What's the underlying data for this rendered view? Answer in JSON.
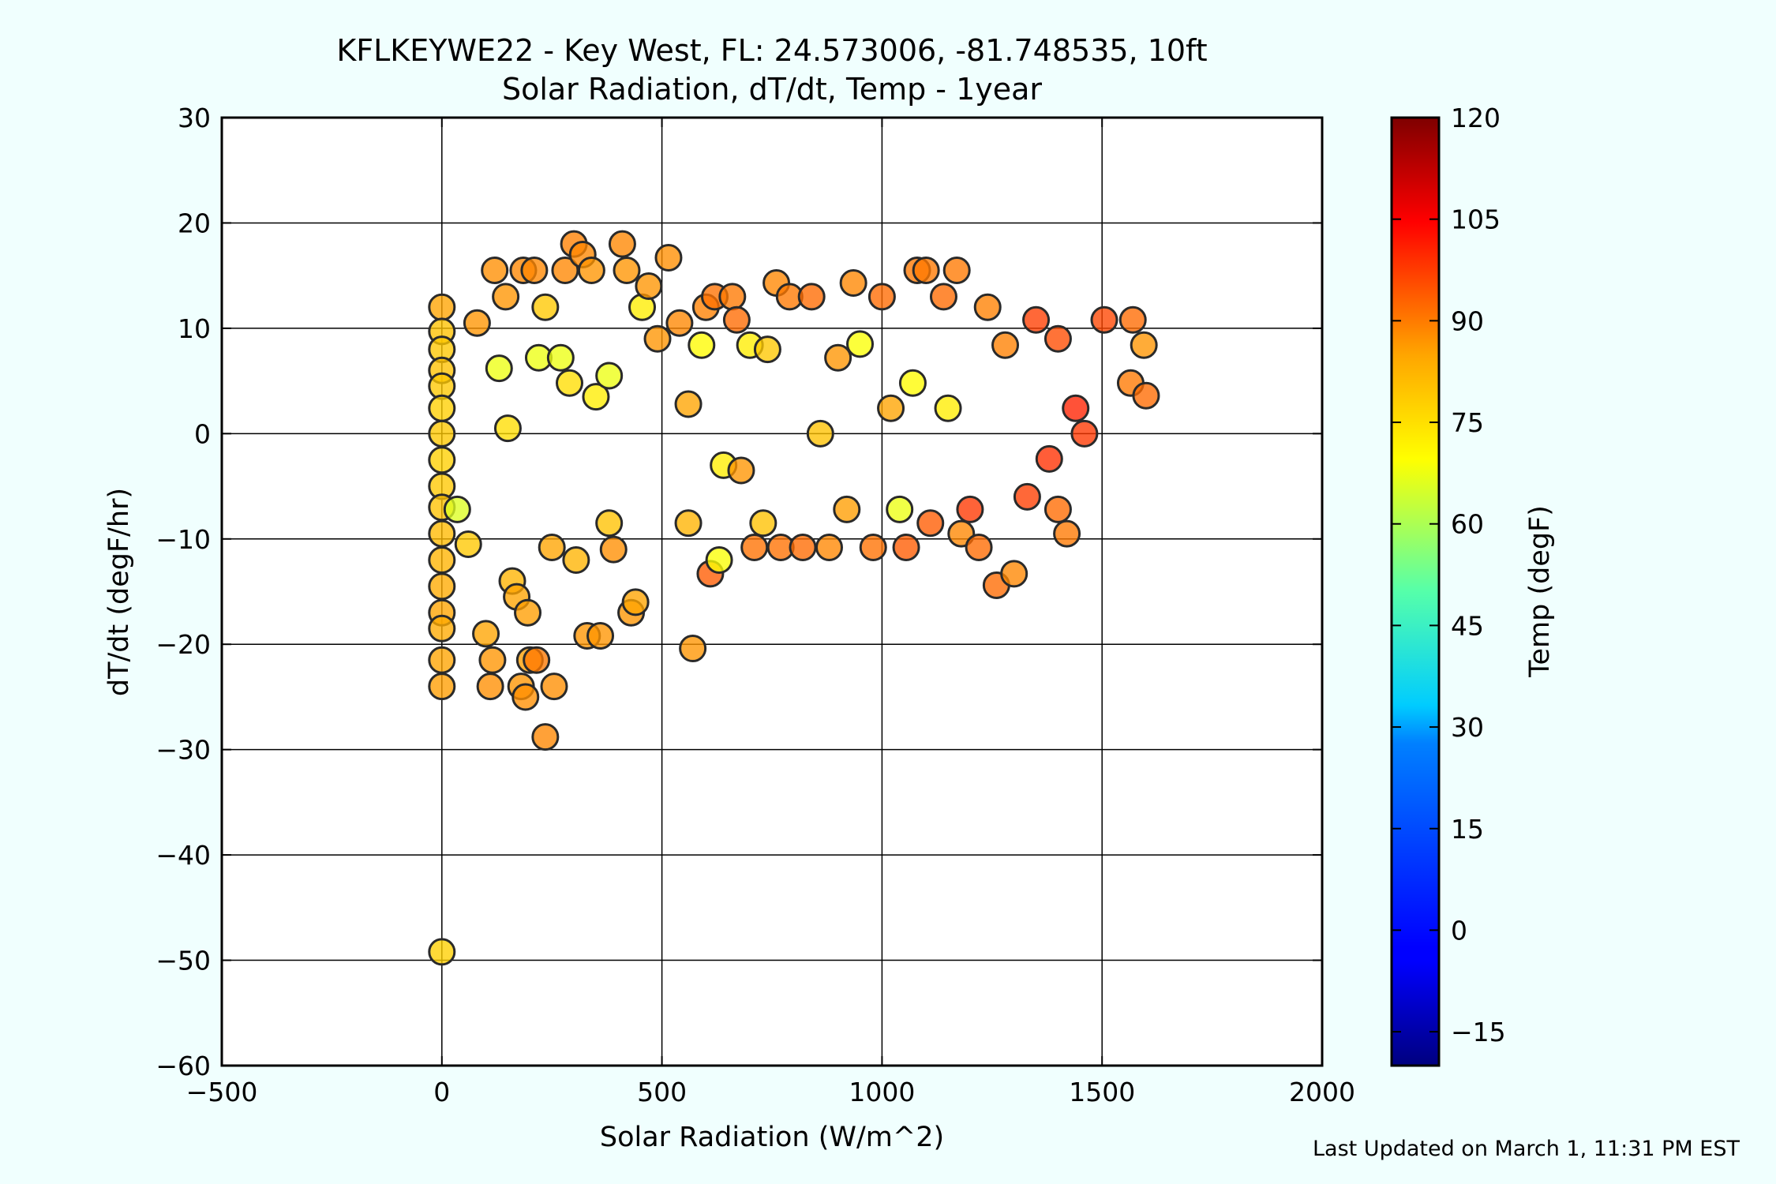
{
  "chart_data": {
    "type": "scatter",
    "title": "KFLKEYWE22 - Key West, FL: 24.573006, -81.748535, 10ft",
    "subtitle": "Solar Radiation, dT/dt, Temp - 1year",
    "xlabel": "Solar Radiation (W/m^2)",
    "ylabel": "dT/dt (degF/hr)",
    "colorbar_label": "Temp (degF)",
    "xlim": [
      -500,
      2000
    ],
    "ylim": [
      -60,
      30
    ],
    "xticks": [
      -500,
      0,
      500,
      1000,
      1500,
      2000
    ],
    "xtick_labels": [
      "−500",
      "0",
      "500",
      "1000",
      "1500",
      "2000"
    ],
    "yticks": [
      -60,
      -50,
      -40,
      -30,
      -20,
      -10,
      0,
      10,
      20,
      30
    ],
    "ytick_labels": [
      "−60",
      "−50",
      "−40",
      "−30",
      "−20",
      "−10",
      "0",
      "10",
      "20",
      "30"
    ],
    "colorbar_range": [
      -20,
      120
    ],
    "colorbar_ticks": [
      -15,
      0,
      15,
      30,
      45,
      60,
      75,
      90,
      105,
      120
    ],
    "colorbar_tick_labels": [
      "−15",
      "0",
      "15",
      "30",
      "45",
      "60",
      "75",
      "90",
      "105",
      "120"
    ],
    "colormap": "jet",
    "grid": true,
    "series": [
      {
        "fields": [
          "solar_radiation",
          "dT_dt",
          "temp"
        ],
        "points": [
          [
            0,
            -49.2,
            74
          ],
          [
            0,
            12,
            80
          ],
          [
            0,
            9.7,
            76
          ],
          [
            0,
            8,
            75
          ],
          [
            0,
            6,
            76
          ],
          [
            0,
            4.5,
            75
          ],
          [
            0,
            2.4,
            74
          ],
          [
            0,
            0,
            75
          ],
          [
            0,
            -2.5,
            74
          ],
          [
            0,
            -5,
            75
          ],
          [
            0,
            -7,
            76
          ],
          [
            0,
            -9.5,
            77
          ],
          [
            0,
            -12,
            78
          ],
          [
            0,
            -14.5,
            79
          ],
          [
            0,
            -17,
            80
          ],
          [
            0,
            -18.5,
            79
          ],
          [
            0,
            -21.5,
            80
          ],
          [
            0,
            -24,
            81
          ],
          [
            35,
            -7.2,
            63
          ],
          [
            60,
            -10.5,
            75
          ],
          [
            80,
            10.5,
            82
          ],
          [
            100,
            -19,
            80
          ],
          [
            110,
            -24,
            83
          ],
          [
            115,
            -21.5,
            82
          ],
          [
            120,
            15.5,
            83
          ],
          [
            130,
            6.2,
            65
          ],
          [
            145,
            13,
            82
          ],
          [
            150,
            0.5,
            72
          ],
          [
            160,
            -14,
            78
          ],
          [
            170,
            -15.5,
            80
          ],
          [
            180,
            -24,
            82
          ],
          [
            185,
            15.5,
            84
          ],
          [
            190,
            -25,
            83
          ],
          [
            195,
            -17,
            81
          ],
          [
            200,
            -21.5,
            81
          ],
          [
            210,
            15.5,
            84
          ],
          [
            215,
            -21.5,
            86
          ],
          [
            220,
            7.2,
            65
          ],
          [
            235,
            12,
            75
          ],
          [
            235,
            -28.8,
            84
          ],
          [
            250,
            -10.8,
            80
          ],
          [
            255,
            -24,
            83
          ],
          [
            270,
            7.2,
            65
          ],
          [
            280,
            15.5,
            84
          ],
          [
            290,
            4.8,
            72
          ],
          [
            300,
            18,
            85
          ],
          [
            305,
            -12,
            78
          ],
          [
            320,
            17,
            84
          ],
          [
            330,
            -19.2,
            82
          ],
          [
            340,
            15.5,
            82
          ],
          [
            350,
            3.5,
            70
          ],
          [
            360,
            -19.2,
            82
          ],
          [
            380,
            5.5,
            65
          ],
          [
            380,
            -8.5,
            76
          ],
          [
            390,
            -11,
            83
          ],
          [
            410,
            18,
            84
          ],
          [
            420,
            15.5,
            82
          ],
          [
            430,
            -17,
            82
          ],
          [
            440,
            -16,
            80
          ],
          [
            455,
            12,
            70
          ],
          [
            470,
            14,
            82
          ],
          [
            490,
            9,
            82
          ],
          [
            515,
            16.7,
            83
          ],
          [
            540,
            10.5,
            84
          ],
          [
            560,
            2.8,
            80
          ],
          [
            560,
            -8.5,
            78
          ],
          [
            570,
            -20.4,
            82
          ],
          [
            590,
            8.4,
            68
          ],
          [
            600,
            12,
            85
          ],
          [
            610,
            -13.3,
            90
          ],
          [
            620,
            13,
            87
          ],
          [
            630,
            -12,
            67
          ],
          [
            640,
            -3,
            70
          ],
          [
            660,
            13,
            86
          ],
          [
            670,
            10.8,
            88
          ],
          [
            680,
            -3.5,
            82
          ],
          [
            700,
            8.4,
            70
          ],
          [
            710,
            -10.8,
            87
          ],
          [
            730,
            -8.5,
            76
          ],
          [
            740,
            8,
            75
          ],
          [
            760,
            14.3,
            84
          ],
          [
            770,
            -10.8,
            87
          ],
          [
            790,
            13,
            86
          ],
          [
            820,
            -10.8,
            88
          ],
          [
            840,
            13,
            88
          ],
          [
            860,
            0,
            76
          ],
          [
            880,
            -10.8,
            84
          ],
          [
            900,
            7.2,
            82
          ],
          [
            920,
            -7.2,
            81
          ],
          [
            935,
            14.3,
            84
          ],
          [
            950,
            8.5,
            67
          ],
          [
            980,
            -10.8,
            87
          ],
          [
            1000,
            13,
            88
          ],
          [
            1020,
            2.4,
            80
          ],
          [
            1040,
            -7.2,
            65
          ],
          [
            1055,
            -10.8,
            90
          ],
          [
            1070,
            4.8,
            68
          ],
          [
            1080,
            15.5,
            86
          ],
          [
            1100,
            15.5,
            86
          ],
          [
            1110,
            -8.5,
            90
          ],
          [
            1140,
            13,
            88
          ],
          [
            1150,
            2.4,
            70
          ],
          [
            1170,
            15.5,
            86
          ],
          [
            1180,
            -9.5,
            84
          ],
          [
            1200,
            -7.2,
            95
          ],
          [
            1220,
            -10.8,
            88
          ],
          [
            1240,
            12,
            85
          ],
          [
            1260,
            -14.4,
            88
          ],
          [
            1280,
            8.4,
            85
          ],
          [
            1300,
            -13.3,
            84
          ],
          [
            1330,
            -6,
            94
          ],
          [
            1350,
            10.8,
            94
          ],
          [
            1380,
            -2.4,
            96
          ],
          [
            1400,
            9,
            92
          ],
          [
            1400,
            -7.2,
            88
          ],
          [
            1420,
            -9.5,
            86
          ],
          [
            1440,
            2.4,
            98
          ],
          [
            1460,
            0,
            95
          ],
          [
            1505,
            10.8,
            93
          ],
          [
            1570,
            10.8,
            88
          ],
          [
            1565,
            4.8,
            86
          ],
          [
            1595,
            8.4,
            82
          ],
          [
            1600,
            3.6,
            88
          ]
        ]
      }
    ]
  },
  "footer": {
    "updated": "Last Updated on March 1, 11:31 PM EST"
  }
}
